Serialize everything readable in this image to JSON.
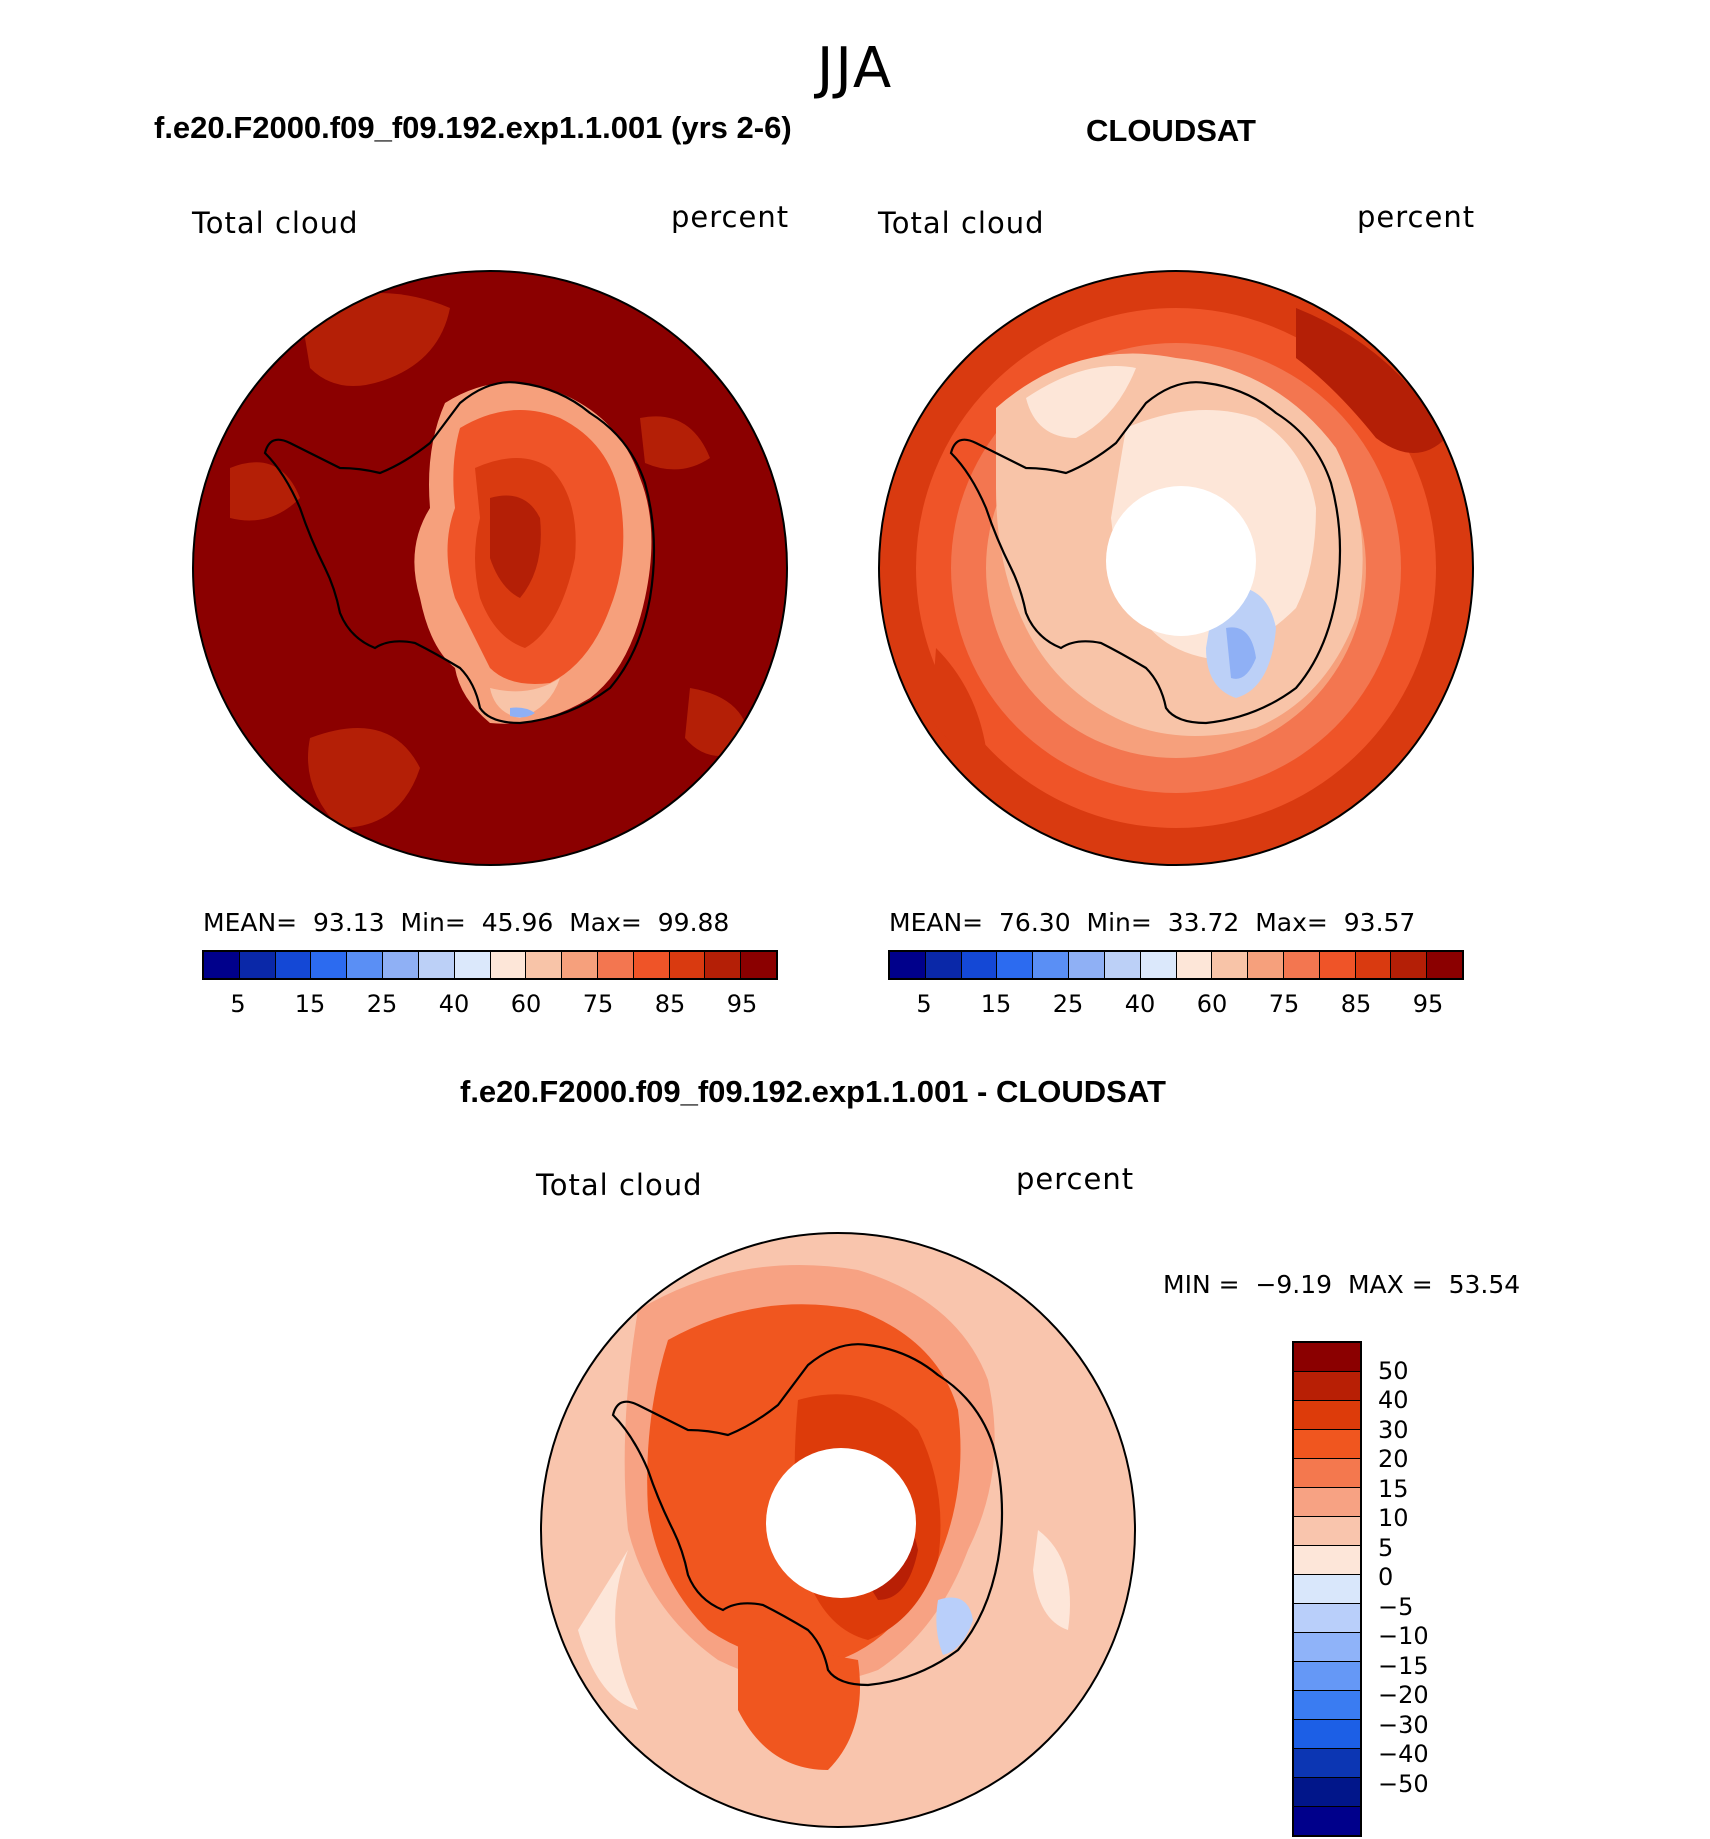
{
  "season": "JJA",
  "colors": {
    "abs_levels": [
      "#00008b",
      "#0a28a8",
      "#1448d6",
      "#2c6bf0",
      "#5a8ff5",
      "#8fb0f5",
      "#bcd0f7",
      "#dbe8fb",
      "#fde6d8",
      "#f8c4a8",
      "#f6a07c",
      "#f37650",
      "#ef5428",
      "#d93a10",
      "#b41f06",
      "#8b0000"
    ],
    "diff_levels": [
      "#8b0000",
      "#b81f05",
      "#dd3b0a",
      "#f0561f",
      "#f4784e",
      "#f7a283",
      "#f9c5ad",
      "#fde6d9",
      "#d9e7fb",
      "#b9cffa",
      "#8fb3f9",
      "#6598f6",
      "#3a7cf2",
      "#1c5fe6",
      "#0c36b3",
      "#01168a",
      "#00008b"
    ],
    "land_outline": "#000000"
  },
  "panels": [
    {
      "title": "f.e20.F2000.f09_f09.192.exp1.1.001 (yrs 2-6)",
      "variable": "Total cloud",
      "units": "percent",
      "mean_label": "MEAN=",
      "mean": "93.13",
      "min_label": "Min=",
      "min": "45.96",
      "max_label": "Max=",
      "max": "99.88",
      "colorbar_ticks": [
        "5",
        "15",
        "25",
        "40",
        "60",
        "75",
        "85",
        "95"
      ]
    },
    {
      "title": "CLOUDSAT",
      "variable": "Total cloud",
      "units": "percent",
      "mean_label": "MEAN=",
      "mean": "76.30",
      "min_label": "Min=",
      "min": "33.72",
      "max_label": "Max=",
      "max": "93.57",
      "colorbar_ticks": [
        "5",
        "15",
        "25",
        "40",
        "60",
        "75",
        "85",
        "95"
      ]
    }
  ],
  "difference": {
    "title": "f.e20.F2000.f09_f09.192.exp1.1.001 - CLOUDSAT",
    "variable": "Total cloud",
    "units": "percent",
    "min_label": "MIN =",
    "min": "−9.19",
    "max_label": "MAX =",
    "max": "53.54",
    "colorbar_ticks": [
      "50",
      "40",
      "30",
      "20",
      "15",
      "10",
      "5",
      "0",
      "−5",
      "−10",
      "−15",
      "−20",
      "−30",
      "−40",
      "−50"
    ]
  }
}
